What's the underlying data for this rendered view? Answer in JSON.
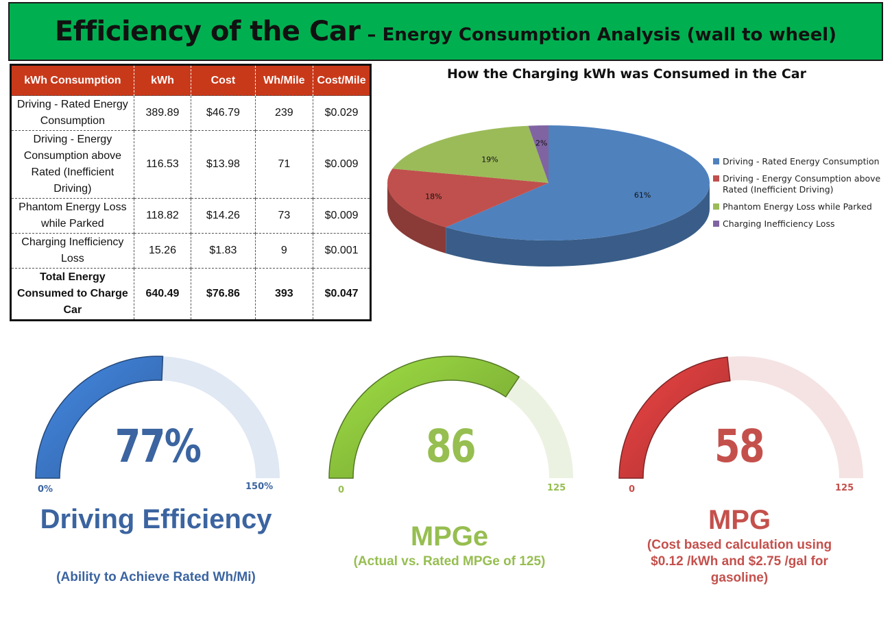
{
  "header": {
    "title": "Efficiency of the Car",
    "subtitle": "– Energy Consumption Analysis (wall to wheel)"
  },
  "table": {
    "columns": [
      "kWh Consumption",
      "kWh",
      "Cost",
      "Wh/Mile",
      "Cost/Mile"
    ],
    "rows": [
      [
        "Driving - Rated Energy Consumption",
        "389.89",
        "$46.79",
        "239",
        "$0.029"
      ],
      [
        "Driving - Energy Consumption above Rated (Inefficient Driving)",
        "116.53",
        "$13.98",
        "71",
        "$0.009"
      ],
      [
        "Phantom Energy Loss while Parked",
        "118.82",
        "$14.26",
        "73",
        "$0.009"
      ],
      [
        "Charging Inefficiency Loss",
        "15.26",
        "$1.83",
        "9",
        "$0.001"
      ],
      [
        "Total Energy Consumed to Charge Car",
        "640.49",
        "$76.86",
        "393",
        "$0.047"
      ]
    ]
  },
  "chart_data": [
    {
      "type": "pie",
      "title": "How the Charging kWh was Consumed in the Car",
      "categories": [
        "Driving - Rated Energy Consumption",
        "Driving - Energy Consumption above Rated (Inefficient Driving)",
        "Phantom Energy Loss while Parked",
        "Charging Inefficiency Loss"
      ],
      "values": [
        61,
        18,
        19,
        2
      ],
      "labels": [
        "61%",
        "18%",
        "19%",
        "2%"
      ],
      "colors": [
        "#4f81bd",
        "#c0504d",
        "#9bbb59",
        "#8064a2"
      ],
      "legend": "right"
    },
    {
      "type": "gauge",
      "value": 77,
      "min": 0,
      "max": 150,
      "value_label": "77%",
      "min_label": "0%",
      "max_label": "150%",
      "title": "Driving Efficiency",
      "subtitle": "(Ability to Achieve Rated Wh/Mi)",
      "color": "#3c78c8",
      "track_color": "#dfe8f3",
      "text_color": "#3b64a0"
    },
    {
      "type": "gauge",
      "value": 86,
      "min": 0,
      "max": 125,
      "value_label": "86",
      "min_label": "0",
      "max_label": "125",
      "title": "MPGe",
      "subtitle": "(Actual vs. Rated MPGe of 125)",
      "color": "#8cc43c",
      "track_color": "#ecf2e2",
      "text_color": "#96be50"
    },
    {
      "type": "gauge",
      "value": 58,
      "min": 0,
      "max": 125,
      "value_label": "58",
      "min_label": "0",
      "max_label": "125",
      "title": "MPG",
      "subtitle": "(Cost based calculation using $0.12 /kWh and $2.75 /gal for gasoline)",
      "color": "#d23c3c",
      "track_color": "#f5e3e3",
      "text_color": "#c4504c"
    }
  ]
}
